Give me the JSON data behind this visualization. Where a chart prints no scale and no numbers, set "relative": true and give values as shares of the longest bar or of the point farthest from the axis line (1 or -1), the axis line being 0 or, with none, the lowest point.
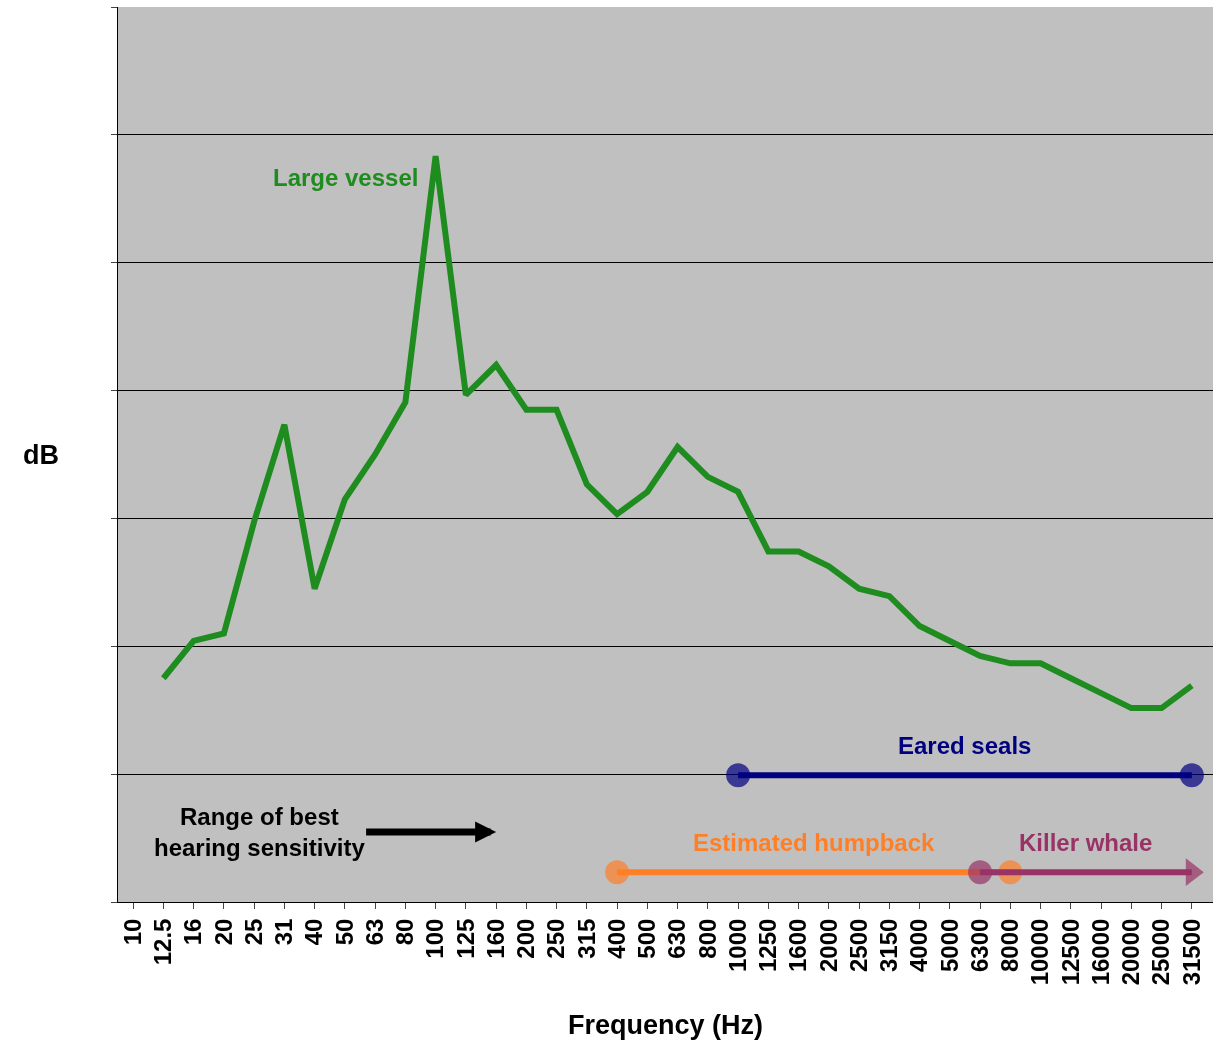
{
  "chart_data": {
    "type": "line",
    "relative": true,
    "xlabel": "Frequency (Hz)",
    "ylabel": "dB",
    "categories": [
      "10",
      "12.5",
      "16",
      "20",
      "25",
      "31",
      "40",
      "50",
      "63",
      "80",
      "100",
      "125",
      "160",
      "200",
      "250",
      "315",
      "400",
      "500",
      "630",
      "800",
      "1000",
      "1250",
      "1600",
      "2000",
      "2500",
      "3150",
      "4000",
      "5000",
      "6300",
      "8000",
      "10000",
      "12500",
      "16000",
      "20000",
      "25000",
      "31500"
    ],
    "series": [
      {
        "name": "Large vessel",
        "color": "#1e8c1e",
        "marker": "none",
        "values": [
          null,
          0.3,
          0.35,
          0.36,
          0.51,
          0.64,
          0.42,
          0.54,
          0.6,
          0.67,
          1.0,
          0.68,
          0.72,
          0.66,
          0.66,
          0.56,
          0.52,
          0.55,
          0.61,
          0.57,
          0.55,
          0.47,
          0.47,
          0.45,
          0.42,
          0.41,
          0.37,
          0.35,
          0.33,
          0.32,
          0.32,
          0.3,
          0.28,
          0.26,
          0.26,
          0.29
        ]
      },
      {
        "name": "Eared seals",
        "color": "#000080",
        "marker": [
          "circle",
          "circle"
        ],
        "values": [
          null,
          null,
          null,
          null,
          null,
          null,
          null,
          null,
          null,
          null,
          null,
          null,
          null,
          null,
          null,
          null,
          null,
          null,
          null,
          null,
          0.17,
          0.17,
          0.17,
          0.17,
          0.17,
          0.17,
          0.17,
          0.17,
          0.17,
          0.17,
          0.17,
          0.17,
          0.17,
          0.17,
          0.17,
          0.17
        ]
      },
      {
        "name": "Estimated humpback",
        "color": "#ff7f27",
        "marker": [
          "circle",
          "circle"
        ],
        "values": [
          null,
          null,
          null,
          null,
          null,
          null,
          null,
          null,
          null,
          null,
          null,
          null,
          null,
          null,
          null,
          null,
          0.04,
          0.04,
          0.04,
          0.04,
          0.04,
          0.04,
          0.04,
          0.04,
          0.04,
          0.04,
          0.04,
          0.04,
          0.04,
          0.04,
          null,
          null,
          null,
          null,
          null,
          null
        ]
      },
      {
        "name": "Killer whale",
        "color": "#993366",
        "marker": [
          "circle",
          "triangle"
        ],
        "values": [
          null,
          null,
          null,
          null,
          null,
          null,
          null,
          null,
          null,
          null,
          null,
          null,
          null,
          null,
          null,
          null,
          null,
          null,
          null,
          null,
          null,
          null,
          null,
          null,
          null,
          null,
          null,
          null,
          0.04,
          0.04,
          0.04,
          0.04,
          0.04,
          0.04,
          0.04,
          0.04
        ]
      }
    ],
    "annotations": [
      "Range of best\nhearing sensitivity"
    ],
    "grid": "y",
    "legend": false
  }
}
